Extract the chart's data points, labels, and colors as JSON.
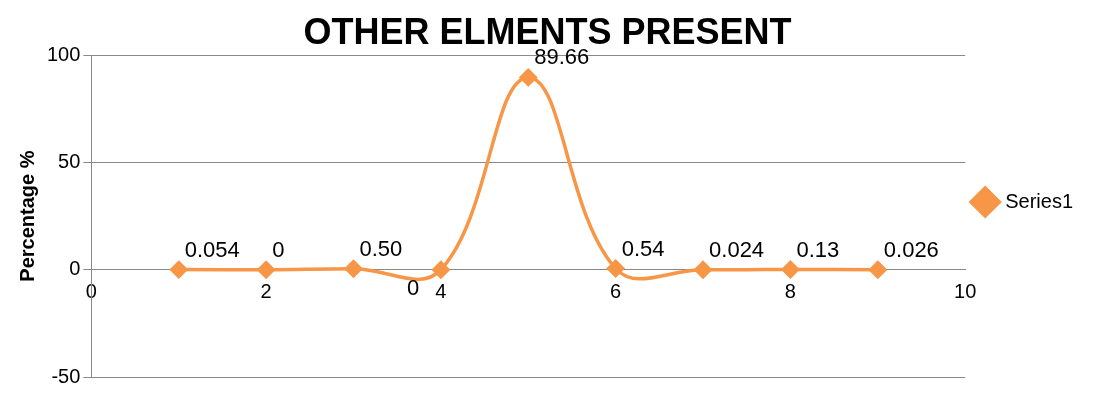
{
  "chart_data": {
    "type": "line",
    "title": "OTHER ELMENTS PRESENT",
    "ylabel": "Percentage %",
    "x": [
      1,
      2,
      3,
      4,
      5,
      6,
      7,
      8,
      9
    ],
    "series": [
      {
        "name": "Series1",
        "color": "#f79646",
        "values": [
          0.054,
          0,
          0.5,
          0,
          89.66,
          0.54,
          0.024,
          0.13,
          0.026
        ],
        "value_labels": [
          "0.054",
          "0",
          "0.50",
          "0",
          "89.66",
          "0.54",
          "0.024",
          "0.13",
          "0.026"
        ]
      }
    ],
    "xlim": [
      0,
      10
    ],
    "xticks": [
      0,
      2,
      4,
      6,
      8,
      10
    ],
    "ylim": [
      -50,
      100
    ],
    "yticks": [
      -50,
      0,
      50,
      100
    ],
    "grid": "y",
    "legend": "right",
    "marker": "diamond",
    "line_style": "solid"
  }
}
